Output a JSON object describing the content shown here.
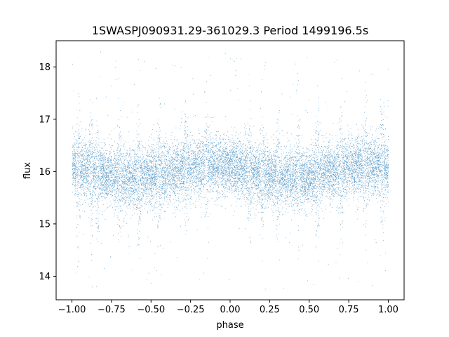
{
  "chart_data": {
    "type": "scatter",
    "title": "1SWASPJ090931.29-361029.3 Period 1499196.5s",
    "xlabel": "phase",
    "ylabel": "flux",
    "xlim": [
      -1.1,
      1.1
    ],
    "ylim": [
      13.55,
      18.5
    ],
    "x_ticks": [
      -1.0,
      -0.75,
      -0.5,
      -0.25,
      0.0,
      0.25,
      0.5,
      0.75,
      1.0
    ],
    "x_tick_labels": [
      "−1.00",
      "−0.75",
      "−0.50",
      "−0.25",
      "0.00",
      "0.25",
      "0.50",
      "0.75",
      "1.00"
    ],
    "y_ticks": [
      14,
      15,
      16,
      17,
      18
    ],
    "y_tick_labels": [
      "14",
      "15",
      "16",
      "17",
      "18"
    ],
    "grid": false,
    "marker_color": "#1f77b4",
    "series": [
      {
        "description_points": "phase-folded light curve, dense band of points",
        "x_range": [
          -1.0,
          1.0
        ],
        "flux_center": 16.0,
        "flux_band": [
          15.3,
          16.7
        ],
        "outlier_range": [
          13.75,
          18.3
        ],
        "approx_points": 14000
      }
    ]
  }
}
